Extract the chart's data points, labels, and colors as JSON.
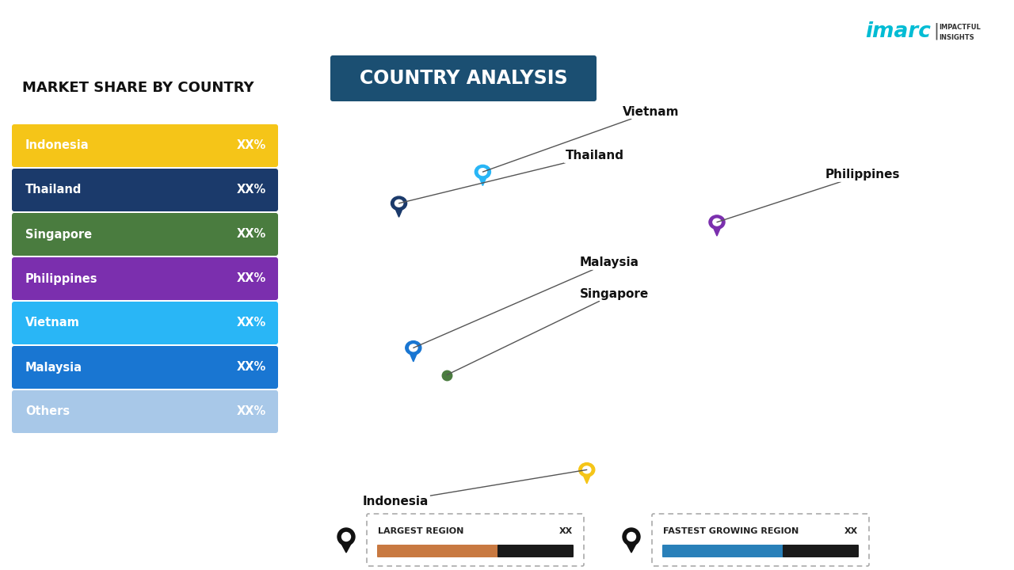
{
  "title": "COUNTRY ANALYSIS",
  "subtitle": "MARKET SHARE BY COUNTRY",
  "bg_color": "#FFFFFF",
  "title_bg_color": "#1B4F72",
  "title_text_color": "#FFFFFF",
  "legend_items": [
    {
      "label": "Indonesia",
      "color": "#F5C518",
      "value": "XX%"
    },
    {
      "label": "Thailand",
      "color": "#1B3A6B",
      "value": "XX%"
    },
    {
      "label": "Singapore",
      "color": "#4A7C3F",
      "value": "XX%"
    },
    {
      "label": "Philippines",
      "color": "#7B2FAE",
      "value": "XX%"
    },
    {
      "label": "Vietnam",
      "color": "#29B6F6",
      "value": "XX%"
    },
    {
      "label": "Malaysia",
      "color": "#1976D2",
      "value": "XX%"
    },
    {
      "label": "Others",
      "color": "#A8C8E8",
      "value": "XX%"
    }
  ],
  "map_colors": {
    "Indonesia": "#F5C518",
    "Thailand": "#1B3A6B",
    "Singapore": "#4A7C3F",
    "Philippines": "#7B2FAE",
    "Vietnam": "#29B6F6",
    "Malaysia": "#1976D2",
    "Others": "#A8C8E8"
  },
  "legend_bottom": [
    {
      "label": "LARGEST REGION",
      "value": "XX",
      "bar_color": "#C87941",
      "pin_color": "#000000"
    },
    {
      "label": "FASTEST GROWING REGION",
      "value": "XX",
      "bar_color": "#2980B9",
      "pin_color": "#000000"
    }
  ],
  "imarc_color": "#00BCD4",
  "imarc_text": "imarc",
  "imarc_sub": "IMPACTFUL\nINSIGHTS"
}
